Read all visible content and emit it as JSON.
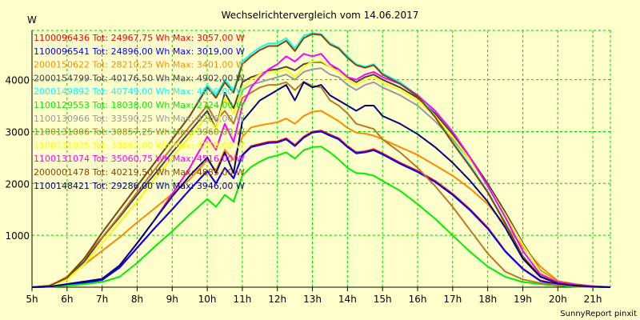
{
  "chart_data": {
    "type": "line",
    "title": "Wechselrichtervergleich vom 14.06.2017",
    "ylabel": "W",
    "xlabel": "",
    "credit": "SunnyReport pinxit",
    "xlim": [
      5,
      21.5
    ],
    "ylim": [
      0,
      4950
    ],
    "x_ticks": [
      5,
      6,
      7,
      8,
      9,
      10,
      11,
      12,
      13,
      14,
      15,
      16,
      17,
      18,
      19,
      20,
      21
    ],
    "x_tick_labels": [
      "5h",
      "6h",
      "7h",
      "8h",
      "9h",
      "10h",
      "11h",
      "12h",
      "13h",
      "14h",
      "15h",
      "16h",
      "17h",
      "18h",
      "19h",
      "20h",
      "21h"
    ],
    "y_ticks": [
      1000,
      2000,
      3000,
      4000
    ],
    "y_tick_labels": [
      "1000",
      "2000",
      "3000",
      "4000"
    ],
    "grid": true,
    "legend_position": "top-left",
    "x": [
      5.0,
      5.5,
      6.0,
      6.5,
      7.0,
      7.5,
      8.0,
      8.5,
      9.0,
      9.5,
      10.0,
      10.25,
      10.5,
      10.75,
      11.0,
      11.25,
      11.5,
      11.75,
      12.0,
      12.25,
      12.5,
      12.75,
      13.0,
      13.25,
      13.5,
      13.75,
      14.0,
      14.25,
      14.5,
      14.75,
      15.0,
      15.5,
      16.0,
      16.5,
      17.0,
      17.5,
      18.0,
      18.5,
      19.0,
      19.5,
      20.0,
      20.5,
      21.0,
      21.5
    ],
    "series": [
      {
        "name": "1100096436 Tot: 24967,75 Wh Max: 3057,00 W",
        "color": "#ff0000",
        "values": [
          0,
          10,
          40,
          80,
          140,
          380,
          760,
          1140,
          1500,
          1880,
          2240,
          2000,
          2300,
          2100,
          2550,
          2720,
          2760,
          2800,
          2810,
          2870,
          2740,
          2900,
          3000,
          3020,
          2940,
          2870,
          2720,
          2600,
          2620,
          2660,
          2580,
          2400,
          2240,
          2050,
          1800,
          1500,
          1150,
          700,
          360,
          130,
          60,
          30,
          10,
          0
        ]
      },
      {
        "name": "1100096541 Tot: 24896,00 Wh Max: 3019,00 W",
        "color": "#0000ff",
        "values": [
          0,
          10,
          40,
          80,
          140,
          380,
          760,
          1140,
          1500,
          1880,
          2240,
          2000,
          2300,
          2100,
          2540,
          2700,
          2740,
          2780,
          2790,
          2850,
          2720,
          2880,
          2980,
          3000,
          2920,
          2850,
          2700,
          2580,
          2600,
          2640,
          2560,
          2380,
          2220,
          2030,
          1780,
          1480,
          1130,
          690,
          350,
          120,
          50,
          20,
          10,
          0
        ]
      },
      {
        "name": "2000150622 Tot: 28210,25 Wh Max: 3401,00 W",
        "color": "#ff8800",
        "values": [
          0,
          20,
          200,
          440,
          700,
          960,
          1250,
          1520,
          1800,
          2080,
          2450,
          2250,
          2650,
          2450,
          2900,
          3080,
          3120,
          3150,
          3180,
          3250,
          3150,
          3300,
          3380,
          3400,
          3300,
          3200,
          3070,
          2980,
          2960,
          2920,
          2850,
          2700,
          2550,
          2350,
          2150,
          1900,
          1600,
          1200,
          780,
          400,
          120,
          60,
          20,
          0
        ]
      },
      {
        "name": "2000154799 Tot: 40176,50 Wh Max: 4902,00 W",
        "color": "#444444",
        "values": [
          0,
          30,
          160,
          500,
          950,
          1350,
          1780,
          2180,
          2600,
          3000,
          3400,
          3050,
          3750,
          3450,
          3950,
          4050,
          4100,
          4180,
          4200,
          4250,
          4180,
          4300,
          4340,
          4340,
          4250,
          4200,
          4050,
          3950,
          4050,
          4100,
          4000,
          3850,
          3650,
          3350,
          2950,
          2500,
          2000,
          1450,
          850,
          320,
          100,
          50,
          20,
          0
        ]
      },
      {
        "name": "2000149892 Tot: 40749,00 Wh Max: 4919,00 W",
        "color": "#00ffff",
        "values": [
          0,
          30,
          180,
          560,
          1050,
          1500,
          1950,
          2400,
          2850,
          3300,
          3900,
          3700,
          4000,
          3800,
          4350,
          4500,
          4620,
          4700,
          4700,
          4800,
          4600,
          4850,
          4900,
          4880,
          4700,
          4620,
          4450,
          4300,
          4250,
          4300,
          4120,
          3950,
          3700,
          3300,
          2800,
          2350,
          1850,
          1250,
          600,
          220,
          80,
          40,
          10,
          0
        ]
      },
      {
        "name": "1100129553 Tot: 18038,00 Wh Max: 2724,00 W",
        "color": "#00ee00",
        "values": [
          0,
          10,
          30,
          60,
          100,
          200,
          470,
          780,
          1080,
          1400,
          1700,
          1550,
          1780,
          1650,
          2150,
          2320,
          2420,
          2500,
          2540,
          2600,
          2480,
          2640,
          2700,
          2710,
          2600,
          2460,
          2300,
          2200,
          2190,
          2150,
          2050,
          1860,
          1600,
          1320,
          1000,
          680,
          400,
          200,
          100,
          60,
          30,
          10,
          5,
          0
        ]
      },
      {
        "name": "1100130966 Tot: 33590,25 Wh Max: 4266,00 W",
        "color": "#999999",
        "values": [
          0,
          20,
          150,
          450,
          850,
          1250,
          1650,
          2100,
          2500,
          2900,
          3300,
          3050,
          3650,
          3350,
          3800,
          3900,
          3950,
          4000,
          4050,
          4100,
          4000,
          4150,
          4200,
          4220,
          4100,
          4050,
          3900,
          3800,
          3900,
          3950,
          3850,
          3700,
          3500,
          3200,
          2850,
          2450,
          1950,
          1400,
          820,
          310,
          95,
          45,
          20,
          0
        ]
      },
      {
        "name": "1100131006 Tot: 30857,25 Wh Max: 3960,00 W",
        "color": "#bb7722",
        "values": [
          0,
          20,
          200,
          560,
          960,
          1380,
          1830,
          2270,
          2700,
          3100,
          3500,
          3200,
          3400,
          3150,
          3650,
          3750,
          3850,
          3900,
          3900,
          3950,
          3800,
          3960,
          3880,
          3850,
          3600,
          3500,
          3350,
          3150,
          3100,
          3050,
          2850,
          2600,
          2300,
          1950,
          1550,
          1100,
          650,
          300,
          150,
          80,
          40,
          20,
          10,
          0
        ]
      },
      {
        "name": "1100131025 Tot: 33862,00 Wh Max: 4358,00 W",
        "color": "#ffff00",
        "values": [
          0,
          20,
          150,
          450,
          850,
          1250,
          1650,
          2100,
          2500,
          2900,
          3300,
          3050,
          3650,
          3350,
          3850,
          4000,
          4100,
          4150,
          4150,
          4200,
          4050,
          4250,
          4350,
          4360,
          4250,
          4150,
          4000,
          3900,
          4000,
          4050,
          3950,
          3800,
          3600,
          3300,
          2900,
          2450,
          1950,
          1400,
          820,
          300,
          95,
          45,
          20,
          0
        ]
      },
      {
        "name": "1100131074 Tot: 35060,75 Wh Max: 4516,00 W",
        "color": "#ff00ff",
        "values": [
          0,
          10,
          60,
          110,
          160,
          420,
          850,
          1300,
          1800,
          2300,
          2900,
          2650,
          3150,
          2800,
          3500,
          3850,
          4050,
          4200,
          4300,
          4450,
          4350,
          4500,
          4450,
          4500,
          4300,
          4200,
          4050,
          4000,
          4100,
          4150,
          4050,
          3920,
          3700,
          3400,
          3000,
          2500,
          1950,
          1350,
          700,
          250,
          100,
          50,
          20,
          0
        ]
      },
      {
        "name": "2000001478 Tot: 40219,50 Wh Max: 4885,00 W",
        "color": "#884400",
        "values": [
          0,
          30,
          180,
          560,
          1050,
          1500,
          1950,
          2400,
          2850,
          3300,
          3850,
          3650,
          3950,
          3750,
          4300,
          4450,
          4570,
          4650,
          4650,
          4750,
          4550,
          4800,
          4880,
          4860,
          4680,
          4600,
          4420,
          4280,
          4230,
          4280,
          4100,
          3920,
          3680,
          3280,
          2780,
          2320,
          1830,
          1230,
          590,
          210,
          75,
          35,
          10,
          0
        ]
      },
      {
        "name": "1100148421 Tot: 29286,00 Wh Max: 3946,00 W",
        "color": "#000080",
        "values": [
          0,
          10,
          60,
          110,
          160,
          420,
          850,
          1300,
          1750,
          2150,
          2500,
          2200,
          2600,
          2200,
          3200,
          3400,
          3600,
          3700,
          3800,
          3900,
          3600,
          3950,
          3850,
          3900,
          3700,
          3600,
          3500,
          3400,
          3500,
          3500,
          3300,
          3150,
          2950,
          2700,
          2400,
          2050,
          1650,
          1150,
          550,
          200,
          70,
          30,
          10,
          0
        ]
      }
    ]
  }
}
